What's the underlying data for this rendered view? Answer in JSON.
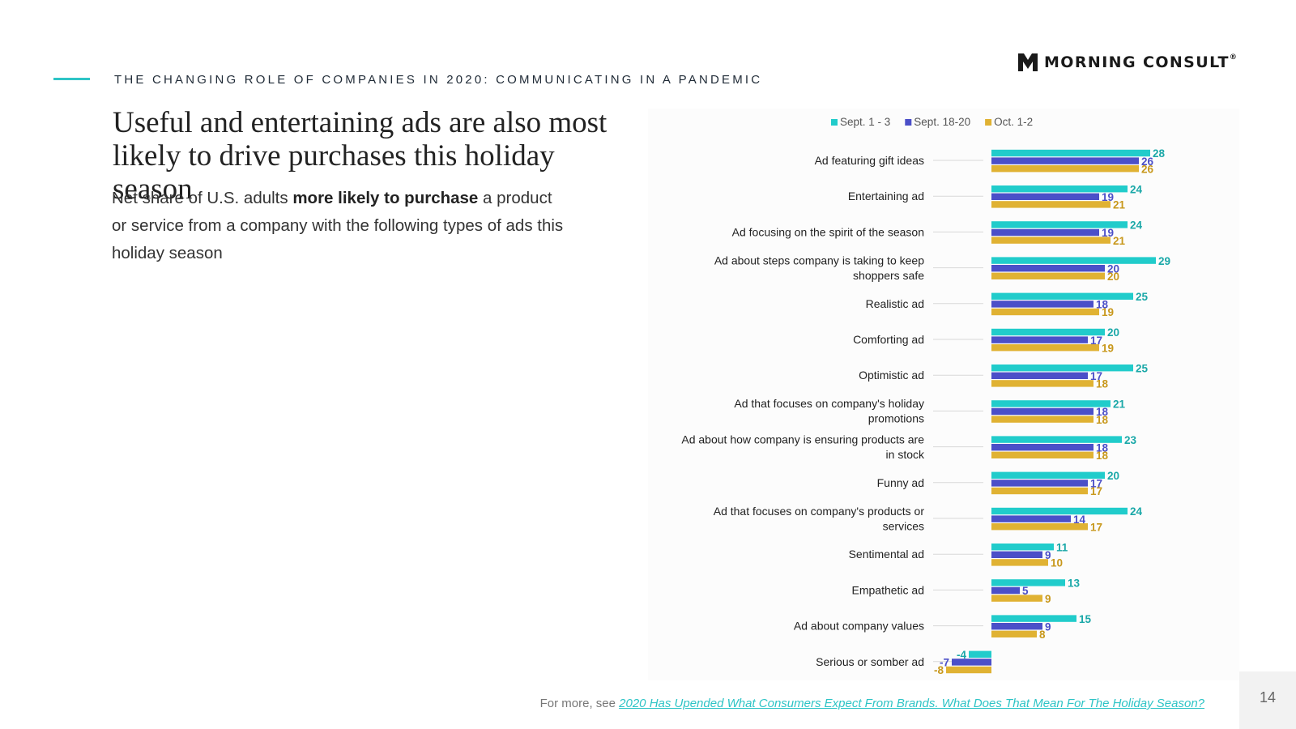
{
  "header": {
    "kicker": "THE CHANGING ROLE OF COMPANIES IN 2020: COMMUNICATING IN A PANDEMIC",
    "logo_text": "MORNING CONSULT",
    "logo_reg": "®"
  },
  "headline": "Useful and entertaining ads are also most likely to drive purchases this holiday season",
  "subtitle": {
    "prefix": "Net share of U.S. adults ",
    "bold": "more likely to purchase",
    "suffix": " a product or service from a company with the following types of ads this holiday season"
  },
  "footer": {
    "prefix": "For more, see ",
    "link_text": "2020 Has Upended What Consumers Expect From Brands. What Does That Mean For The Holiday Season?"
  },
  "page_number": "14",
  "colors": {
    "teal": "#21cccb",
    "blue": "#4b4fc8",
    "gold": "#e0b233",
    "accent": "#2ec4c6"
  },
  "chart_data": {
    "type": "bar",
    "orientation": "horizontal",
    "legend_position": "top",
    "categories": [
      [
        "Ad featuring gift ideas"
      ],
      [
        "Entertaining ad"
      ],
      [
        "Ad focusing on the spirit of the season"
      ],
      [
        "Ad about steps company is taking to keep",
        "shoppers safe"
      ],
      [
        "Realistic ad"
      ],
      [
        "Comforting ad"
      ],
      [
        "Optimistic ad"
      ],
      [
        "Ad that focuses on company's holiday",
        "promotions"
      ],
      [
        "Ad about how company is ensuring products are",
        "in stock"
      ],
      [
        "Funny ad"
      ],
      [
        "Ad that focuses on company's products or",
        "services"
      ],
      [
        "Sentimental ad"
      ],
      [
        "Empathetic ad"
      ],
      [
        "Ad about company values"
      ],
      [
        "Serious or somber ad"
      ]
    ],
    "series": [
      {
        "name": "Sept. 1 - 3",
        "color": "#21cccb",
        "label_color": "#1aa8a8",
        "values": [
          28,
          24,
          24,
          29,
          25,
          20,
          25,
          21,
          23,
          20,
          24,
          11,
          13,
          15,
          -4
        ]
      },
      {
        "name": "Sept. 18-20",
        "color": "#4b4fc8",
        "label_color": "#4b4fc8",
        "values": [
          26,
          19,
          19,
          20,
          18,
          17,
          17,
          18,
          18,
          17,
          14,
          9,
          5,
          9,
          -7
        ]
      },
      {
        "name": "Oct. 1-2",
        "color": "#e0b233",
        "label_color": "#c8981c",
        "values": [
          26,
          21,
          21,
          20,
          19,
          19,
          18,
          18,
          18,
          17,
          17,
          10,
          9,
          8,
          -8
        ]
      }
    ],
    "xlim": [
      -8,
      30
    ]
  }
}
